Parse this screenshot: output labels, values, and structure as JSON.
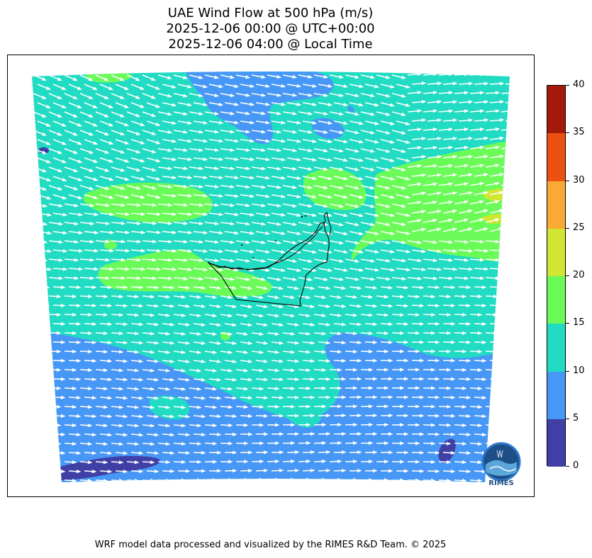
{
  "title": {
    "line1": "UAE Wind Flow at 500 hPa (m/s)",
    "line2": "2025-12-06 00:00 @ UTC+00:00",
    "line3": "2025-12-06 04:00 @ Local Time"
  },
  "colorbar": {
    "levels": [
      0,
      5,
      10,
      15,
      20,
      25,
      30,
      35,
      40
    ],
    "colors": [
      "#3f3fa6",
      "#4797f7",
      "#21dbc2",
      "#6bfb58",
      "#d0e632",
      "#fba935",
      "#ec5114",
      "#a41a0a"
    ],
    "labels": [
      "0",
      "5",
      "10",
      "15",
      "20",
      "25",
      "30",
      "35",
      "40"
    ]
  },
  "wind": {
    "direction": "westerly to west-north-westerly flow",
    "arrow_color": "#ffffff"
  },
  "logo": {
    "text": "RIMES"
  },
  "credit": "WRF model data processed and visualized by the RIMES R&D Team. © 2025"
}
